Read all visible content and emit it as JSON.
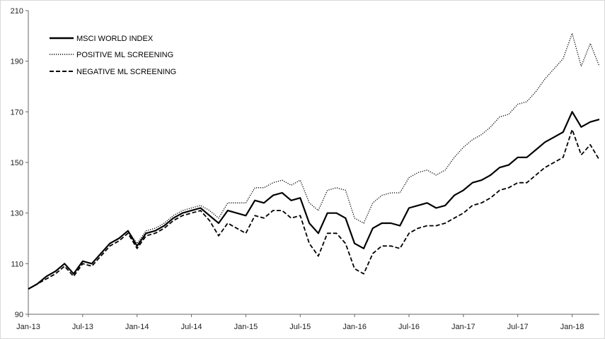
{
  "chart_data": {
    "type": "line",
    "title": "",
    "xlabel": "",
    "ylabel": "",
    "ylim": [
      90,
      210
    ],
    "yticks": [
      90,
      110,
      130,
      150,
      170,
      190,
      210
    ],
    "xlim": [
      "2013-01",
      "2018-04"
    ],
    "xticks": [
      {
        "label": "Jan-13",
        "date": "2013-01"
      },
      {
        "label": "Jul-13",
        "date": "2013-07"
      },
      {
        "label": "Jan-14",
        "date": "2014-01"
      },
      {
        "label": "Jul-14",
        "date": "2014-07"
      },
      {
        "label": "Jan-15",
        "date": "2015-01"
      },
      {
        "label": "Jul-15",
        "date": "2015-07"
      },
      {
        "label": "Jan-16",
        "date": "2016-01"
      },
      {
        "label": "Jul-16",
        "date": "2016-07"
      },
      {
        "label": "Jan-17",
        "date": "2017-01"
      },
      {
        "label": "Jul-17",
        "date": "2017-07"
      },
      {
        "label": "Jan-18",
        "date": "2018-01"
      }
    ],
    "grid": false,
    "legend_position": "top-left",
    "series": [
      {
        "name": "MSCI WORLD INDEX",
        "style": "solid",
        "color": "#000000",
        "points": [
          [
            "2013-01",
            100
          ],
          [
            "2013-02",
            102
          ],
          [
            "2013-03",
            105
          ],
          [
            "2013-04",
            107
          ],
          [
            "2013-05",
            110
          ],
          [
            "2013-06",
            106
          ],
          [
            "2013-07",
            111
          ],
          [
            "2013-08",
            110
          ],
          [
            "2013-09",
            114
          ],
          [
            "2013-10",
            118
          ],
          [
            "2013-11",
            120
          ],
          [
            "2013-12",
            123
          ],
          [
            "2014-01",
            117
          ],
          [
            "2014-02",
            122
          ],
          [
            "2014-03",
            123
          ],
          [
            "2014-04",
            125
          ],
          [
            "2014-05",
            128
          ],
          [
            "2014-06",
            130
          ],
          [
            "2014-07",
            131
          ],
          [
            "2014-08",
            132
          ],
          [
            "2014-09",
            129
          ],
          [
            "2014-10",
            126
          ],
          [
            "2014-11",
            131
          ],
          [
            "2014-12",
            130
          ],
          [
            "2015-01",
            129
          ],
          [
            "2015-02",
            135
          ],
          [
            "2015-03",
            134
          ],
          [
            "2015-04",
            137
          ],
          [
            "2015-05",
            138
          ],
          [
            "2015-06",
            135
          ],
          [
            "2015-07",
            136
          ],
          [
            "2015-08",
            126
          ],
          [
            "2015-09",
            122
          ],
          [
            "2015-10",
            130
          ],
          [
            "2015-11",
            130
          ],
          [
            "2015-12",
            128
          ],
          [
            "2016-01",
            118
          ],
          [
            "2016-02",
            116
          ],
          [
            "2016-03",
            124
          ],
          [
            "2016-04",
            126
          ],
          [
            "2016-05",
            126
          ],
          [
            "2016-06",
            125
          ],
          [
            "2016-07",
            132
          ],
          [
            "2016-08",
            133
          ],
          [
            "2016-09",
            134
          ],
          [
            "2016-10",
            132
          ],
          [
            "2016-11",
            133
          ],
          [
            "2016-12",
            137
          ],
          [
            "2017-01",
            139
          ],
          [
            "2017-02",
            142
          ],
          [
            "2017-03",
            143
          ],
          [
            "2017-04",
            145
          ],
          [
            "2017-05",
            148
          ],
          [
            "2017-06",
            149
          ],
          [
            "2017-07",
            152
          ],
          [
            "2017-08",
            152
          ],
          [
            "2017-09",
            155
          ],
          [
            "2017-10",
            158
          ],
          [
            "2017-11",
            160
          ],
          [
            "2017-12",
            162
          ],
          [
            "2018-01",
            170
          ],
          [
            "2018-02",
            164
          ],
          [
            "2018-03",
            166
          ],
          [
            "2018-04",
            167
          ]
        ]
      },
      {
        "name": "POSITIVE ML SCREENING",
        "style": "dotted",
        "color": "#000000",
        "points": [
          [
            "2013-01",
            100
          ],
          [
            "2013-02",
            102
          ],
          [
            "2013-03",
            105
          ],
          [
            "2013-04",
            107
          ],
          [
            "2013-05",
            110
          ],
          [
            "2013-06",
            106
          ],
          [
            "2013-07",
            111
          ],
          [
            "2013-08",
            110
          ],
          [
            "2013-09",
            114
          ],
          [
            "2013-10",
            118
          ],
          [
            "2013-11",
            120
          ],
          [
            "2013-12",
            123
          ],
          [
            "2014-01",
            118
          ],
          [
            "2014-02",
            123
          ],
          [
            "2014-03",
            124
          ],
          [
            "2014-04",
            126
          ],
          [
            "2014-05",
            129
          ],
          [
            "2014-06",
            131
          ],
          [
            "2014-07",
            132
          ],
          [
            "2014-08",
            133
          ],
          [
            "2014-09",
            131
          ],
          [
            "2014-10",
            128
          ],
          [
            "2014-11",
            134
          ],
          [
            "2014-12",
            134
          ],
          [
            "2015-01",
            134
          ],
          [
            "2015-02",
            140
          ],
          [
            "2015-03",
            140
          ],
          [
            "2015-04",
            142
          ],
          [
            "2015-05",
            143
          ],
          [
            "2015-06",
            141
          ],
          [
            "2015-07",
            143
          ],
          [
            "2015-08",
            134
          ],
          [
            "2015-09",
            131
          ],
          [
            "2015-10",
            139
          ],
          [
            "2015-11",
            140
          ],
          [
            "2015-12",
            139
          ],
          [
            "2016-01",
            128
          ],
          [
            "2016-02",
            126
          ],
          [
            "2016-03",
            134
          ],
          [
            "2016-04",
            137
          ],
          [
            "2016-05",
            138
          ],
          [
            "2016-06",
            138
          ],
          [
            "2016-07",
            144
          ],
          [
            "2016-08",
            146
          ],
          [
            "2016-09",
            147
          ],
          [
            "2016-10",
            145
          ],
          [
            "2016-11",
            147
          ],
          [
            "2016-12",
            152
          ],
          [
            "2017-01",
            156
          ],
          [
            "2017-02",
            159
          ],
          [
            "2017-03",
            161
          ],
          [
            "2017-04",
            164
          ],
          [
            "2017-05",
            168
          ],
          [
            "2017-06",
            169
          ],
          [
            "2017-07",
            173
          ],
          [
            "2017-08",
            174
          ],
          [
            "2017-09",
            178
          ],
          [
            "2017-10",
            183
          ],
          [
            "2017-11",
            187
          ],
          [
            "2017-12",
            191
          ],
          [
            "2018-01",
            201
          ],
          [
            "2018-02",
            188
          ],
          [
            "2018-03",
            197
          ],
          [
            "2018-04",
            188
          ]
        ]
      },
      {
        "name": "NEGATIVE ML SCREENING",
        "style": "dashed",
        "color": "#000000",
        "points": [
          [
            "2013-01",
            100
          ],
          [
            "2013-02",
            102
          ],
          [
            "2013-03",
            104
          ],
          [
            "2013-04",
            106
          ],
          [
            "2013-05",
            109
          ],
          [
            "2013-06",
            105
          ],
          [
            "2013-07",
            110
          ],
          [
            "2013-08",
            109
          ],
          [
            "2013-09",
            113
          ],
          [
            "2013-10",
            117
          ],
          [
            "2013-11",
            119
          ],
          [
            "2013-12",
            122
          ],
          [
            "2014-01",
            116
          ],
          [
            "2014-02",
            121
          ],
          [
            "2014-03",
            122
          ],
          [
            "2014-04",
            124
          ],
          [
            "2014-05",
            127
          ],
          [
            "2014-06",
            129
          ],
          [
            "2014-07",
            130
          ],
          [
            "2014-08",
            131
          ],
          [
            "2014-09",
            127
          ],
          [
            "2014-10",
            121
          ],
          [
            "2014-11",
            126
          ],
          [
            "2014-12",
            124
          ],
          [
            "2015-01",
            122
          ],
          [
            "2015-02",
            129
          ],
          [
            "2015-03",
            128
          ],
          [
            "2015-04",
            131
          ],
          [
            "2015-05",
            131
          ],
          [
            "2015-06",
            128
          ],
          [
            "2015-07",
            129
          ],
          [
            "2015-08",
            118
          ],
          [
            "2015-09",
            113
          ],
          [
            "2015-10",
            122
          ],
          [
            "2015-11",
            122
          ],
          [
            "2015-12",
            118
          ],
          [
            "2016-01",
            108
          ],
          [
            "2016-02",
            106
          ],
          [
            "2016-03",
            114
          ],
          [
            "2016-04",
            117
          ],
          [
            "2016-05",
            117
          ],
          [
            "2016-06",
            116
          ],
          [
            "2016-07",
            122
          ],
          [
            "2016-08",
            124
          ],
          [
            "2016-09",
            125
          ],
          [
            "2016-10",
            125
          ],
          [
            "2016-11",
            126
          ],
          [
            "2016-12",
            128
          ],
          [
            "2017-01",
            130
          ],
          [
            "2017-02",
            133
          ],
          [
            "2017-03",
            134
          ],
          [
            "2017-04",
            136
          ],
          [
            "2017-05",
            139
          ],
          [
            "2017-06",
            140
          ],
          [
            "2017-07",
            142
          ],
          [
            "2017-08",
            142
          ],
          [
            "2017-09",
            145
          ],
          [
            "2017-10",
            148
          ],
          [
            "2017-11",
            150
          ],
          [
            "2017-12",
            152
          ],
          [
            "2018-01",
            163
          ],
          [
            "2018-02",
            153
          ],
          [
            "2018-03",
            157
          ],
          [
            "2018-04",
            151
          ]
        ]
      }
    ]
  }
}
